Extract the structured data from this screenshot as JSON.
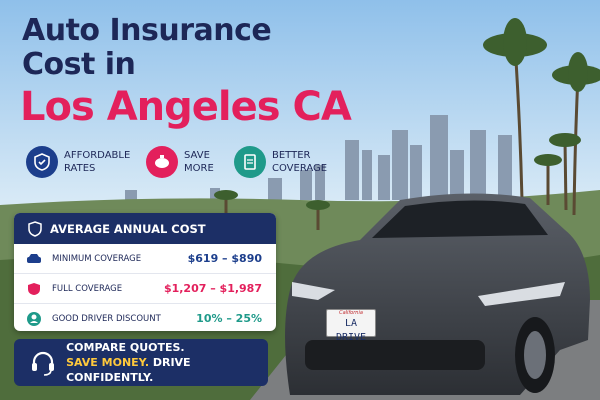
{
  "title": {
    "line1": "Auto Insurance",
    "line2": "Cost in",
    "line3": "Los Angeles CA"
  },
  "features": [
    {
      "lines": [
        "AFFORDABLE",
        "RATES"
      ]
    },
    {
      "lines": [
        "SAVE",
        "MORE"
      ]
    },
    {
      "lines": [
        "BETTER",
        "COVERAGE"
      ]
    }
  ],
  "card": {
    "header": "AVERAGE ANNUAL COST",
    "rows": [
      {
        "label": "MINIMUM COVERAGE",
        "value": "$619 – $890"
      },
      {
        "label": "FULL COVERAGE",
        "value": "$1,207 – $1,987"
      },
      {
        "label": "GOOD DRIVER DISCOUNT",
        "value": "10% – 25%"
      }
    ]
  },
  "cta": {
    "line1": "COMPARE QUOTES.",
    "highlight": "SAVE MONEY.",
    "rest": "DRIVE CONFIDENTLY."
  },
  "plate": {
    "state": "California",
    "text": "LA DRIVE"
  }
}
